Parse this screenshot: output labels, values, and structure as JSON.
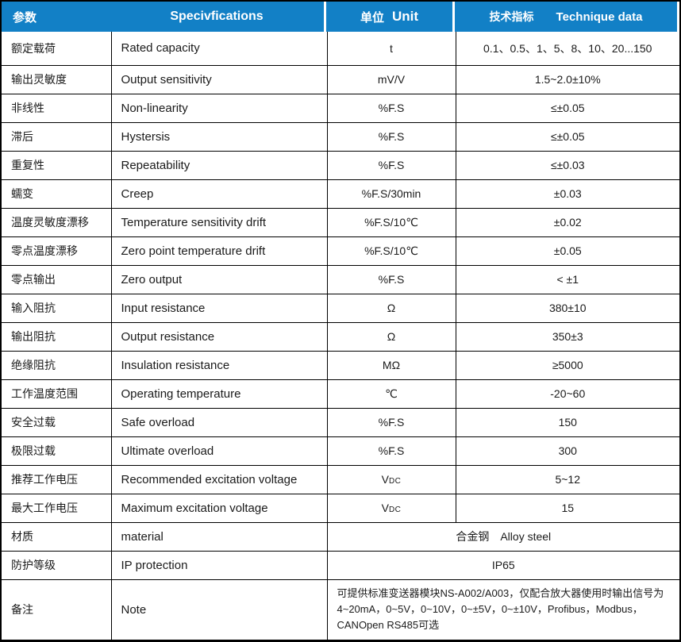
{
  "colors": {
    "header_blue": "#1280c6",
    "border": "#000000",
    "body_text": "#1a1a1a",
    "header_text": "#ffffff"
  },
  "table": {
    "header": {
      "param_cn": "参数",
      "spec_en": "Specivfications",
      "unit_cn": "单位",
      "unit_en": "Unit",
      "data_cn": "技术指标",
      "data_en": "Technique data"
    },
    "rows": [
      {
        "param": "额定载荷",
        "spec": "Rated capacity",
        "unit": "t",
        "value": "0.1、0.5、1、5、8、10、20...150"
      },
      {
        "param": "输出灵敏度",
        "spec": "Output sensitivity",
        "unit": "mV/V",
        "value": "1.5~2.0±10%"
      },
      {
        "param": "非线性",
        "spec": "Non-linearity",
        "unit": "%F.S",
        "value": "≤±0.05"
      },
      {
        "param": "滞后",
        "spec": "Hystersis",
        "unit": "%F.S",
        "value": "≤±0.05"
      },
      {
        "param": "重复性",
        "spec": "Repeatability",
        "unit": "%F.S",
        "value": "≤±0.03"
      },
      {
        "param": "蠕变",
        "spec": "Creep",
        "unit": "%F.S/30min",
        "value": "±0.03"
      },
      {
        "param": "温度灵敏度漂移",
        "spec": "Temperature sensitivity drift",
        "unit": "%F.S/10℃",
        "value": "±0.02"
      },
      {
        "param": "零点温度漂移",
        "spec": "Zero point temperature drift",
        "unit": "%F.S/10℃",
        "value": "±0.05"
      },
      {
        "param": "零点输出",
        "spec": "Zero output",
        "unit": "%F.S",
        "value": "< ±1"
      },
      {
        "param": "输入阻抗",
        "spec": "Input resistance",
        "unit": "Ω",
        "value": "380±10"
      },
      {
        "param": "输出阻抗",
        "spec": "Output resistance",
        "unit": "Ω",
        "value": "350±3"
      },
      {
        "param": "绝缘阻抗",
        "spec": "Insulation resistance",
        "unit": "MΩ",
        "value": "≥5000"
      },
      {
        "param": "工作温度范围",
        "spec": "Operating temperature",
        "unit": "℃",
        "value": "-20~60"
      },
      {
        "param": "安全过载",
        "spec": "Safe overload",
        "unit": "%F.S",
        "value": "150"
      },
      {
        "param": "极限过载",
        "spec": "Ultimate overload",
        "unit": "%F.S",
        "value": "300"
      },
      {
        "param": "推荐工作电压",
        "spec": "Recommended excitation voltage",
        "unit": "V",
        "unit_sub": "DC",
        "value": "5~12"
      },
      {
        "param": "最大工作电压",
        "spec": "Maximum excitation voltage",
        "unit": "V",
        "unit_sub": "DC",
        "value": "15"
      },
      {
        "param": "材质",
        "spec": "material",
        "value": "合金钢　Alloy steel"
      },
      {
        "param": "防护等级",
        "spec": "IP protection",
        "value": "IP65"
      },
      {
        "param": "备注",
        "spec": "Note",
        "value": "可提供标准变送器模块NS-A002/A003，仅配合放大器使用时输出信号为4~20mA，0~5V，0~10V，0~±5V，0~±10V，Profibus，Modbus，CANOpen RS485可选"
      }
    ]
  }
}
